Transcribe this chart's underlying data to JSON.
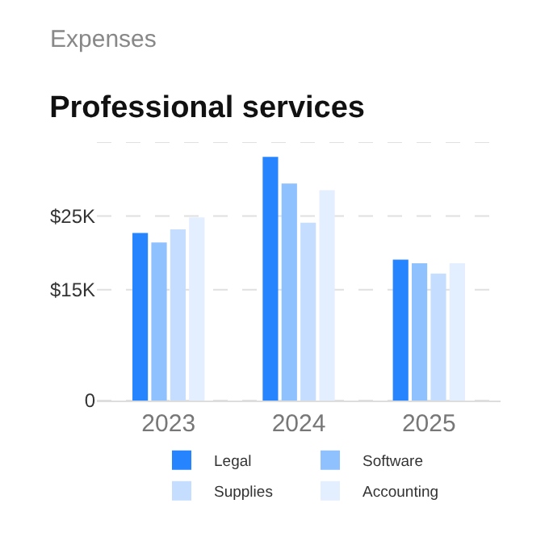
{
  "chart_data": {
    "type": "bar",
    "title": "Professional services",
    "subtitle": "Expenses",
    "categories": [
      "2023",
      "2024",
      "2025"
    ],
    "series": [
      {
        "name": "Legal",
        "color": "#2684ff",
        "values": [
          22.7,
          33.0,
          19.1
        ]
      },
      {
        "name": "Software",
        "color": "#8fc1ff",
        "values": [
          21.4,
          29.4,
          18.6
        ]
      },
      {
        "name": "Supplies",
        "color": "#c5deff",
        "values": [
          23.2,
          24.1,
          17.2
        ]
      },
      {
        "name": "Accounting",
        "color": "#e3eeff",
        "values": [
          24.8,
          28.5,
          18.6
        ]
      }
    ],
    "ylim": [
      0,
      35
    ],
    "yticks": [
      0,
      {
        "value": 15,
        "label": "$15K"
      },
      {
        "value": 25,
        "label": "$25K"
      },
      {
        "value": 35,
        "label": null
      }
    ],
    "grid": "y",
    "legend": "bottom"
  }
}
